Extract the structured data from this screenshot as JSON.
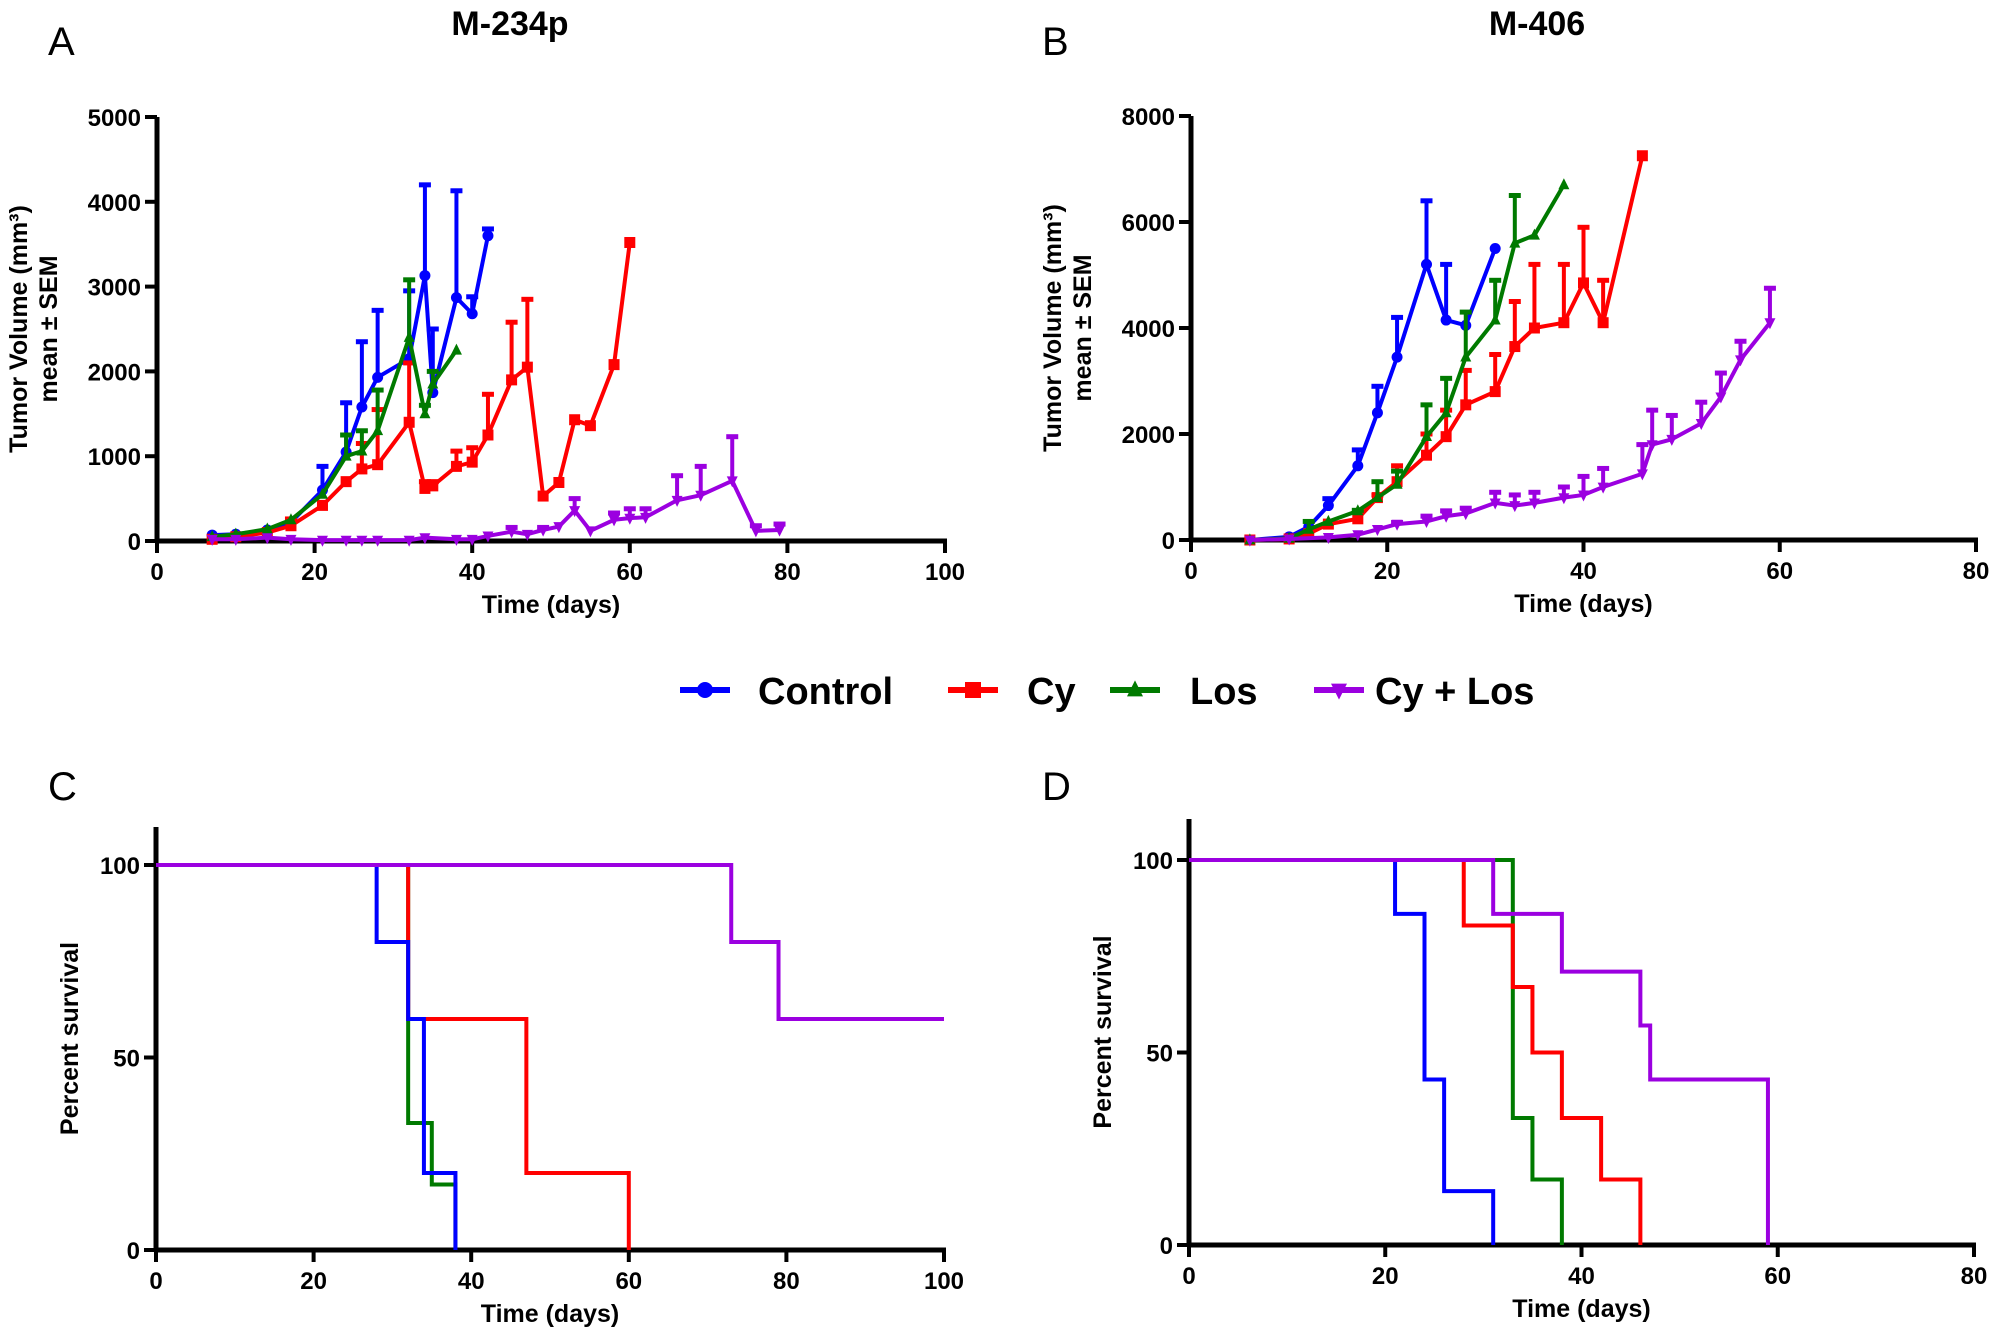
{
  "chart_data": [
    {
      "id": "A",
      "panel_letter": "A",
      "type": "line",
      "title": "M-234p",
      "xlabel": "Time (days)",
      "ylabel_line1": "Tumor Volume (mm³)",
      "ylabel_line2": "mean ± SEM",
      "xlim": [
        0,
        100
      ],
      "ylim": [
        0,
        5000
      ],
      "xticks": [
        0,
        20,
        40,
        60,
        80,
        100
      ],
      "yticks": [
        0,
        1000,
        2000,
        3000,
        4000,
        5000
      ],
      "series": [
        {
          "name": "Control",
          "x": [
            7,
            10,
            14,
            17,
            21,
            24,
            26,
            28,
            32,
            34,
            35,
            38,
            40,
            42
          ],
          "y": [
            70,
            80,
            130,
            220,
            600,
            1050,
            1580,
            1930,
            2150,
            3130,
            1750,
            2870,
            2680,
            3600
          ],
          "err_upper": [
            null,
            null,
            null,
            null,
            880,
            1630,
            2350,
            2720,
            2950,
            4200,
            2500,
            4130,
            2880,
            3680
          ]
        },
        {
          "name": "Cy",
          "x": [
            7,
            10,
            14,
            17,
            21,
            24,
            26,
            28,
            32,
            34,
            35,
            38,
            40,
            42,
            45,
            47,
            49,
            51,
            53,
            55,
            58,
            60
          ],
          "y": [
            20,
            50,
            100,
            180,
            420,
            700,
            850,
            900,
            1400,
            620,
            650,
            880,
            930,
            1250,
            1900,
            2050,
            530,
            690,
            1430,
            1360,
            2080,
            3520
          ],
          "err_upper": [
            null,
            null,
            null,
            260,
            null,
            null,
            1150,
            1550,
            2100,
            700,
            700,
            1060,
            1100,
            1730,
            2580,
            2850,
            null,
            null,
            null,
            null,
            null,
            null
          ]
        },
        {
          "name": "Los",
          "x": [
            7,
            10,
            14,
            17,
            21,
            24,
            26,
            28,
            32,
            34,
            35,
            38
          ],
          "y": [
            50,
            80,
            140,
            250,
            550,
            1000,
            1060,
            1300,
            2400,
            1500,
            1850,
            2250
          ],
          "err_upper": [
            null,
            null,
            null,
            null,
            null,
            1250,
            1300,
            1780,
            3080,
            1600,
            2000,
            null
          ]
        },
        {
          "name": "Cy + Los",
          "x": [
            7,
            10,
            14,
            17,
            21,
            24,
            26,
            28,
            32,
            34,
            38,
            40,
            42,
            45,
            47,
            49,
            51,
            53,
            55,
            58,
            60,
            62,
            66,
            69,
            73,
            76,
            79
          ],
          "y": [
            20,
            20,
            40,
            20,
            10,
            10,
            10,
            10,
            10,
            40,
            20,
            20,
            60,
            110,
            80,
            130,
            170,
            360,
            120,
            250,
            270,
            280,
            480,
            540,
            710,
            120,
            130
          ],
          "err_upper": [
            null,
            null,
            null,
            null,
            null,
            null,
            null,
            null,
            null,
            null,
            null,
            null,
            null,
            160,
            null,
            160,
            null,
            500,
            null,
            330,
            380,
            380,
            770,
            880,
            1230,
            180,
            200
          ]
        }
      ]
    },
    {
      "id": "B",
      "panel_letter": "B",
      "type": "line",
      "title": "M-406",
      "xlabel": "Time (days)",
      "ylabel_line1": "Tumor Volume (mm³)",
      "ylabel_line2": "mean ± SEM",
      "xlim": [
        0,
        80
      ],
      "ylim": [
        0,
        8000
      ],
      "xticks": [
        0,
        20,
        40,
        60,
        80
      ],
      "yticks": [
        0,
        2000,
        4000,
        6000,
        8000
      ],
      "series": [
        {
          "name": "Control",
          "x": [
            6,
            10,
            12,
            14,
            17,
            19,
            21,
            24,
            26,
            28,
            31
          ],
          "y": [
            0,
            60,
            250,
            650,
            1400,
            2400,
            3450,
            5200,
            4150,
            4050,
            5500
          ],
          "err_upper": [
            null,
            null,
            null,
            780,
            1700,
            2900,
            4200,
            6400,
            5200,
            null,
            null
          ]
        },
        {
          "name": "Cy",
          "x": [
            6,
            10,
            12,
            14,
            17,
            19,
            21,
            24,
            26,
            28,
            31,
            33,
            35,
            38,
            40,
            42,
            46
          ],
          "y": [
            0,
            20,
            120,
            300,
            400,
            800,
            1100,
            1600,
            1950,
            2550,
            2800,
            3650,
            4000,
            4100,
            4850,
            4100,
            7250
          ],
          "err_upper": [
            null,
            null,
            null,
            null,
            null,
            850,
            1400,
            2000,
            2450,
            3200,
            3500,
            4500,
            5200,
            5200,
            5900,
            4900,
            null
          ]
        },
        {
          "name": "Los",
          "x": [
            6,
            10,
            12,
            14,
            17,
            19,
            21,
            24,
            26,
            28,
            31,
            33,
            35,
            38
          ],
          "y": [
            0,
            30,
            200,
            350,
            550,
            800,
            1050,
            1950,
            2400,
            3450,
            4150,
            5600,
            5750,
            6700
          ],
          "err_upper": [
            null,
            null,
            350,
            null,
            560,
            1100,
            1300,
            2550,
            3050,
            4300,
            4900,
            6500,
            null,
            null
          ]
        },
        {
          "name": "Cy + Los",
          "x": [
            6,
            10,
            14,
            17,
            19,
            21,
            24,
            26,
            28,
            31,
            33,
            35,
            38,
            40,
            42,
            46,
            47,
            49,
            52,
            54,
            56,
            59
          ],
          "y": [
            0,
            20,
            50,
            100,
            200,
            300,
            350,
            450,
            500,
            700,
            650,
            700,
            800,
            850,
            1000,
            1250,
            1800,
            1900,
            2200,
            2700,
            3400,
            4100
          ],
          "err_upper": [
            null,
            null,
            null,
            null,
            null,
            330,
            450,
            550,
            600,
            900,
            850,
            900,
            1000,
            1200,
            1350,
            1800,
            2450,
            2350,
            2600,
            3150,
            3750,
            4750
          ]
        }
      ]
    },
    {
      "id": "C",
      "panel_letter": "C",
      "type": "line",
      "subtype": "survival-step",
      "xlabel": "Time (days)",
      "ylabel": "Percent survival",
      "xlim": [
        0,
        100
      ],
      "ylim": [
        0,
        110
      ],
      "xticks": [
        0,
        20,
        40,
        60,
        80,
        100
      ],
      "yticks": [
        0,
        50,
        100
      ],
      "series": [
        {
          "name": "Los",
          "x": [
            0,
            32,
            35,
            38
          ],
          "y": [
            100,
            33,
            17,
            0
          ]
        },
        {
          "name": "Cy",
          "x": [
            0,
            32,
            47,
            60
          ],
          "y": [
            100,
            60,
            20,
            0
          ]
        },
        {
          "name": "Control",
          "x": [
            0,
            28,
            32,
            34,
            38
          ],
          "y": [
            100,
            80,
            60,
            20,
            0
          ]
        },
        {
          "name": "Cy + Los",
          "x": [
            0,
            73,
            79,
            100
          ],
          "y": [
            100,
            80,
            60,
            60
          ]
        }
      ]
    },
    {
      "id": "D",
      "panel_letter": "D",
      "type": "line",
      "subtype": "survival-step",
      "xlabel": "Time (days)",
      "ylabel": "Percent survival",
      "xlim": [
        0,
        80
      ],
      "ylim": [
        0,
        110
      ],
      "xticks": [
        0,
        20,
        40,
        60,
        80
      ],
      "yticks": [
        0,
        50,
        100
      ],
      "series": [
        {
          "name": "Los",
          "x": [
            0,
            33,
            35,
            38
          ],
          "y": [
            100,
            33,
            17,
            0
          ]
        },
        {
          "name": "Cy",
          "x": [
            0,
            28,
            33,
            35,
            38,
            42,
            46
          ],
          "y": [
            100,
            83,
            67,
            50,
            33,
            17,
            0
          ]
        },
        {
          "name": "Control",
          "x": [
            0,
            21,
            24,
            26,
            31
          ],
          "y": [
            100,
            86,
            43,
            14,
            0
          ]
        },
        {
          "name": "Cy + Los",
          "x": [
            0,
            31,
            38,
            46,
            47,
            59
          ],
          "y": [
            100,
            86,
            71,
            57,
            43,
            0
          ]
        }
      ]
    }
  ],
  "legend": {
    "placement": "center",
    "items": [
      {
        "name": "Control",
        "color": "#0000ff",
        "marker": "circle"
      },
      {
        "name": "Cy",
        "color": "#ff0000",
        "marker": "square"
      },
      {
        "name": "Los",
        "color": "#007a00",
        "marker": "triangle-up"
      },
      {
        "name": "Cy + Los",
        "color": "#9b00e0",
        "marker": "triangle-down"
      }
    ]
  }
}
